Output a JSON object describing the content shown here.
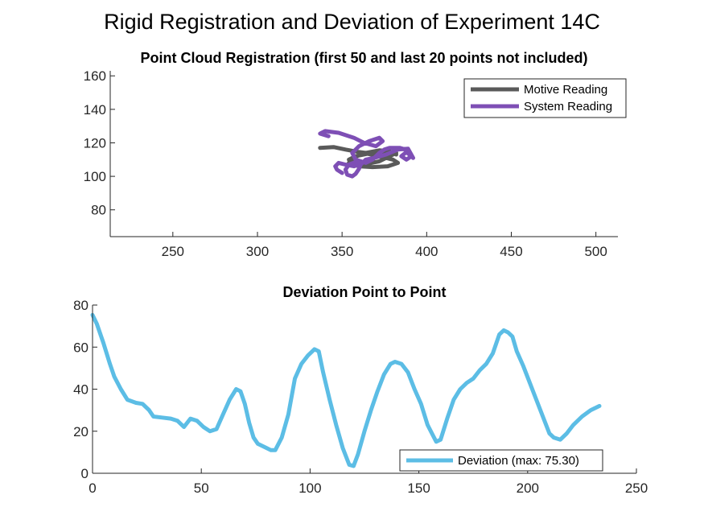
{
  "figure_title": "Rigid Registration and Deviation of Experiment 14C",
  "colors": {
    "motive": "#5a5a5a",
    "system": "#7e4fb5",
    "deviation": "#5cbde5",
    "axis": "#262626"
  },
  "chart_data": [
    {
      "type": "line",
      "title": "Point Cloud Registration (first 50 and last 20 points not included)",
      "xlabel": "",
      "ylabel": "",
      "xlim": [
        213,
        513
      ],
      "ylim": [
        64,
        163
      ],
      "xticks": [
        250,
        300,
        350,
        400,
        450,
        500
      ],
      "yticks": [
        80,
        100,
        120,
        140,
        160
      ],
      "grid": false,
      "legend_position": "top-right",
      "series": [
        {
          "name": "Motive Reading",
          "color": "#5a5a5a",
          "x": [
            337,
            345,
            352,
            360,
            368,
            376,
            382,
            378,
            372,
            365,
            358,
            354,
            358,
            365,
            372,
            380,
            383,
            377,
            368,
            360,
            354,
            356,
            364,
            372,
            378,
            382
          ],
          "y": [
            117,
            117.5,
            116,
            114.5,
            113.5,
            113.5,
            114,
            112,
            109,
            107.5,
            108,
            110,
            112,
            113.5,
            112,
            110,
            108,
            106,
            105.5,
            106,
            108,
            111,
            114,
            115.5,
            115,
            113
          ]
        },
        {
          "name": "System Reading",
          "color": "#7e4fb5",
          "x": [
            342,
            337,
            340,
            348,
            357,
            363,
            370,
            374,
            372,
            366,
            360,
            356,
            358,
            364,
            368,
            372,
            375,
            378,
            384,
            389,
            391,
            388,
            385,
            388,
            392,
            389,
            383,
            376,
            369,
            364,
            361,
            360,
            358,
            356,
            353,
            352,
            354,
            358,
            360,
            357,
            352,
            348,
            346,
            347,
            350
          ],
          "y": [
            124,
            125.5,
            127,
            126,
            123,
            120,
            118,
            121,
            123,
            121,
            118,
            114,
            110,
            108,
            110,
            114,
            116,
            117,
            117,
            115.5,
            112,
            110,
            112,
            114.5,
            111,
            116.5,
            116,
            113,
            111,
            110,
            107,
            104.5,
            101.5,
            100,
            101,
            104,
            107,
            108.5,
            107,
            106,
            107,
            108,
            106,
            104,
            102
          ]
        }
      ]
    },
    {
      "type": "line",
      "title": "Deviation Point to Point",
      "xlabel": "",
      "ylabel": "",
      "xlim": [
        0,
        250
      ],
      "ylim": [
        0,
        80
      ],
      "xticks": [
        0,
        50,
        100,
        150,
        200,
        250
      ],
      "yticks": [
        0,
        20,
        40,
        60,
        80
      ],
      "grid": false,
      "legend_position": "bottom-right",
      "series": [
        {
          "name": "Deviation (max: 75.30)",
          "color": "#5cbde5",
          "x": [
            0,
            2,
            5,
            8,
            10,
            13,
            16,
            20,
            23,
            26,
            28,
            32,
            36,
            39,
            42,
            45,
            48,
            51,
            54,
            57,
            60,
            63,
            66,
            68,
            70,
            72,
            74,
            76,
            78,
            80,
            82,
            84,
            87,
            90,
            93,
            96,
            99,
            102,
            104,
            106,
            109,
            112,
            115,
            118,
            120,
            122,
            125,
            128,
            131,
            134,
            137,
            139,
            142,
            145,
            148,
            151,
            154,
            157,
            158,
            160,
            163,
            166,
            169,
            172,
            175,
            178,
            181,
            184,
            187,
            189,
            191,
            193,
            195,
            198,
            201,
            204,
            207,
            210,
            212,
            215,
            218,
            221,
            225,
            229,
            233
          ],
          "y": [
            75.3,
            71,
            62,
            52,
            46,
            40,
            35,
            33.5,
            33,
            30,
            27,
            26.5,
            26,
            25,
            22,
            26,
            25,
            22,
            20,
            21,
            28,
            35,
            40,
            39,
            33,
            24,
            17,
            14,
            13,
            12,
            11,
            11,
            17,
            28,
            45,
            52,
            56,
            59,
            58,
            48,
            35,
            23,
            12,
            4,
            3.5,
            9,
            20,
            30,
            39,
            47,
            52,
            53,
            52,
            48,
            40,
            33,
            23,
            17,
            15,
            16,
            26,
            35,
            40,
            43,
            45,
            49,
            52,
            57,
            66,
            68,
            67,
            65,
            58,
            51,
            43,
            35,
            27,
            19,
            17,
            16,
            19,
            23,
            27,
            30,
            32
          ]
        }
      ]
    }
  ]
}
